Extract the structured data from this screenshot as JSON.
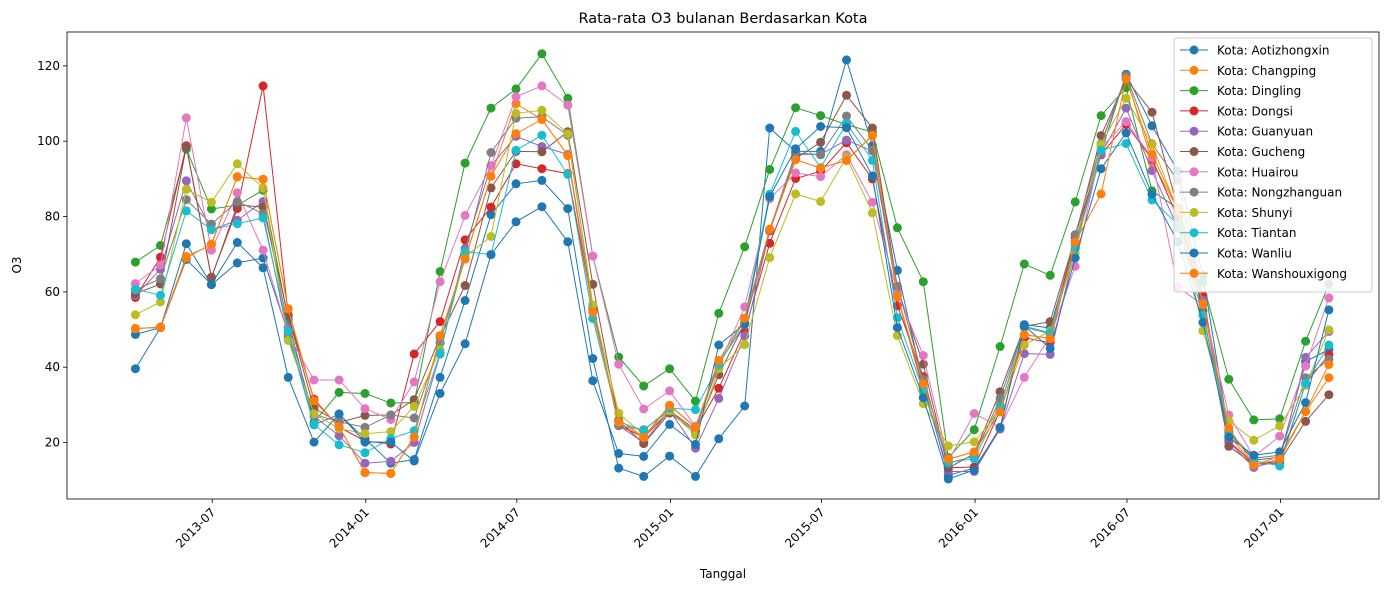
{
  "chart_data": {
    "type": "line",
    "title": "Rata-rata O3 bulanan Berdasarkan Kota",
    "xlabel": "Tanggal",
    "ylabel": "O3",
    "ylim": [
      5,
      129
    ],
    "yticks": [
      20,
      40,
      60,
      80,
      100,
      120
    ],
    "xlim": [
      "2013-01-08",
      "2017-04-29"
    ],
    "xticks": [
      {
        "date": "2013-07-01",
        "label": "2013-07"
      },
      {
        "date": "2014-01-01",
        "label": "2014-01"
      },
      {
        "date": "2014-07-01",
        "label": "2014-07"
      },
      {
        "date": "2015-01-01",
        "label": "2015-01"
      },
      {
        "date": "2015-07-01",
        "label": "2015-07"
      },
      {
        "date": "2016-01-01",
        "label": "2016-01"
      },
      {
        "date": "2016-07-01",
        "label": "2016-07"
      },
      {
        "date": "2017-01-01",
        "label": "2017-01"
      }
    ],
    "grid": false,
    "legend_position": "top-right",
    "x": [
      "2013-03-31",
      "2013-04-30",
      "2013-05-31",
      "2013-06-30",
      "2013-07-31",
      "2013-08-31",
      "2013-09-30",
      "2013-10-31",
      "2013-11-30",
      "2013-12-31",
      "2014-01-31",
      "2014-02-28",
      "2014-03-31",
      "2014-04-30",
      "2014-05-31",
      "2014-06-30",
      "2014-07-31",
      "2014-08-31",
      "2014-09-30",
      "2014-10-31",
      "2014-11-30",
      "2014-12-31",
      "2015-01-31",
      "2015-02-28",
      "2015-03-31",
      "2015-04-30",
      "2015-05-31",
      "2015-06-30",
      "2015-07-31",
      "2015-08-31",
      "2015-09-30",
      "2015-10-31",
      "2015-11-30",
      "2015-12-31",
      "2016-01-31",
      "2016-02-29",
      "2016-03-31",
      "2016-04-30",
      "2016-05-31",
      "2016-06-30",
      "2016-07-31",
      "2016-08-31",
      "2016-09-30",
      "2016-10-31",
      "2016-11-30",
      "2016-12-31",
      "2017-01-31",
      "2017-02-28"
    ],
    "series": [
      {
        "name": "Kota: Aotizhongxin",
        "color": "#1f77b4",
        "values": [
          48.7,
          50.5,
          72.8,
          61.9,
          67.7,
          69.0,
          49.0,
          24.7,
          27.5,
          21.0,
          14.5,
          15.5,
          37.3,
          57.7,
          80.5,
          88.7,
          89.6,
          82.1,
          42.3,
          13.2,
          11.0,
          16.4,
          11.0,
          21.0,
          29.7,
          103.5,
          97.3,
          97.3,
          121.6,
          98.8,
          65.7,
          35.4,
          11.3,
          13.2,
          23.6,
          51.3,
          50.4,
          73.2,
          97.0,
          117.8,
          104.1,
          92.1,
          64.4,
          22.6,
          15.3,
          16.1,
          41.5,
          44.7
        ]
      },
      {
        "name": "Kota: Changping",
        "color": "#ff7f0e",
        "values": [
          50.2,
          50.7,
          69.4,
          72.5,
          90.5,
          89.9,
          55.5,
          31.1,
          24.2,
          12.0,
          11.8,
          21.6,
          48.4,
          68.7,
          90.7,
          110.0,
          105.8,
          96.2,
          54.6,
          26.1,
          21.5,
          29.9,
          24.1,
          41.8,
          53.0,
          76.6,
          95.1,
          92.9,
          94.9,
          101.5,
          58.8,
          33.6,
          15.6,
          17.5,
          30.1,
          48.7,
          47.6,
          72.5,
          99.1,
          117.3,
          94.5,
          81.9,
          59.1,
          21.9,
          14.0,
          16.4,
          28.2,
          37.2
        ]
      },
      {
        "name": "Kota: Dingling",
        "color": "#2ca02c",
        "values": [
          67.9,
          72.3,
          97.9,
          82.0,
          83.0,
          87.0,
          52.6,
          25.4,
          33.3,
          33.0,
          30.5,
          30.6,
          65.4,
          94.2,
          108.8,
          113.9,
          123.2,
          111.4,
          69.5,
          42.7,
          35.0,
          39.6,
          31.0,
          54.3,
          72.0,
          92.5,
          108.9,
          106.8,
          104.4,
          102.4,
          77.0,
          62.7,
          16.0,
          23.4,
          45.5,
          67.4,
          64.4,
          83.9,
          106.8,
          114.2,
          86.8,
          82.2,
          62.6,
          36.8,
          26.0,
          26.3,
          46.9,
          62.0
        ]
      },
      {
        "name": "Kota: Dongsi",
        "color": "#d62728",
        "values": [
          58.5,
          69.2,
          98.8,
          63.9,
          82.1,
          114.7,
          53.9,
          31.5,
          24.1,
          20.4,
          19.6,
          43.5,
          52.1,
          73.8,
          82.5,
          94.0,
          92.7,
          91.4,
          55.6,
          24.5,
          21.4,
          28.2,
          23.4,
          34.4,
          49.5,
          72.9,
          90.1,
          92.0,
          99.6,
          90.0,
          56.3,
          37.5,
          13.3,
          13.5,
          28.4,
          47.8,
          46.5,
          75.0,
          96.4,
          104.5,
          95.3,
          79.6,
          58.9,
          20.4,
          14.3,
          14.4,
          35.7,
          43.3
        ]
      },
      {
        "name": "Kota: Guanyuan",
        "color": "#9467bd",
        "values": [
          59.0,
          66.0,
          89.5,
          76.5,
          79.0,
          84.0,
          50.6,
          27.0,
          21.8,
          14.5,
          15.0,
          20.0,
          43.5,
          71.5,
          93.5,
          101.3,
          98.6,
          96.5,
          56.0,
          24.5,
          20.0,
          28.5,
          18.5,
          31.7,
          48.3,
          76.2,
          96.5,
          96.5,
          100.3,
          97.4,
          59.2,
          34.4,
          12.3,
          12.3,
          23.6,
          43.6,
          43.4,
          71.4,
          96.6,
          108.8,
          92.2,
          76.9,
          57.8,
          20.1,
          13.4,
          15.2,
          42.6,
          49.5
        ]
      },
      {
        "name": "Kota: Gucheng",
        "color": "#8c564b",
        "values": [
          59.5,
          62.1,
          98.6,
          63.7,
          83.1,
          82.5,
          53.6,
          29.1,
          25.3,
          27.2,
          27.3,
          31.4,
          48.0,
          61.7,
          87.6,
          97.3,
          97.2,
          102.5,
          62.0,
          25.7,
          19.7,
          27.8,
          22.9,
          38.0,
          51.7,
          76.2,
          95.4,
          99.7,
          112.2,
          103.5,
          61.0,
          40.8,
          13.2,
          17.0,
          33.5,
          50.8,
          52.1,
          74.5,
          101.5,
          116.5,
          107.7,
          82.0,
          55.0,
          19.0,
          14.2,
          15.0,
          25.6,
          32.7
        ]
      },
      {
        "name": "Kota: Huairou",
        "color": "#e377c2",
        "values": [
          62.2,
          67.1,
          106.2,
          71.1,
          86.3,
          71.1,
          48.6,
          36.6,
          36.6,
          29.0,
          26.1,
          36.1,
          62.7,
          80.3,
          93.4,
          111.8,
          114.7,
          109.6,
          69.5,
          40.8,
          28.9,
          33.7,
          24.3,
          40.4,
          56.0,
          84.7,
          91.6,
          90.6,
          96.4,
          83.8,
          59.9,
          43.1,
          15.0,
          27.7,
          24.0,
          37.3,
          48.2,
          66.8,
          98.3,
          105.2,
          95.6,
          61.2,
          56.6,
          27.3,
          16.2,
          21.7,
          40.3,
          58.4
        ]
      },
      {
        "name": "Kota: Nongzhanguan",
        "color": "#7f7f7f",
        "values": [
          60.5,
          63.5,
          84.5,
          78.0,
          84.0,
          80.8,
          48.0,
          27.5,
          25.5,
          24.0,
          27.3,
          26.5,
          46.5,
          70.0,
          97.0,
          106.1,
          106.5,
          101.6,
          56.4,
          24.5,
          23.4,
          28.5,
          23.4,
          41.0,
          51.4,
          76.5,
          96.9,
          96.4,
          106.7,
          97.6,
          61.5,
          36.8,
          14.5,
          16.4,
          31.7,
          50.6,
          48.9,
          75.2,
          99.4,
          117.4,
          99.3,
          89.6,
          56.8,
          22.9,
          15.8,
          16.6,
          37.2,
          42.1
        ]
      },
      {
        "name": "Kota: Shunyi",
        "color": "#bcbd22",
        "values": [
          53.9,
          57.3,
          87.2,
          83.8,
          94.0,
          87.6,
          47.1,
          27.6,
          23.7,
          22.3,
          22.9,
          29.6,
          44.6,
          69.3,
          74.7,
          107.4,
          108.2,
          102.0,
          56.5,
          27.8,
          22.0,
          28.4,
          22.0,
          39.6,
          46.0,
          69.1,
          86.0,
          84.0,
          95.7,
          81.0,
          48.4,
          30.3,
          19.1,
          20.2,
          28.5,
          45.9,
          49.6,
          70.3,
          99.1,
          111.4,
          99.1,
          81.5,
          49.7,
          25.7,
          20.6,
          24.4,
          35.2,
          49.9
        ]
      },
      {
        "name": "Kota: Tiantan",
        "color": "#17becf",
        "values": [
          60.7,
          59.1,
          81.5,
          76.5,
          78.1,
          79.6,
          49.6,
          24.8,
          19.4,
          17.3,
          21.0,
          23.1,
          43.7,
          70.7,
          69.9,
          97.6,
          101.6,
          91.2,
          52.9,
          25.5,
          23.2,
          29.1,
          28.7,
          40.6,
          52.7,
          85.9,
          102.6,
          93.0,
          104.7,
          94.9,
          53.1,
          33.8,
          14.7,
          15.7,
          29.4,
          50.9,
          49.1,
          71.7,
          97.6,
          99.4,
          84.4,
          77.9,
          53.8,
          23.2,
          15.2,
          13.8,
          35.7,
          45.9
        ]
      },
      {
        "name": "Kota: Wanliu",
        "color": "#1f77b4",
        "values": [
          39.6,
          50.5,
          68.6,
          62.0,
          73.1,
          66.4,
          37.3,
          20.1,
          27.6,
          20.1,
          20.1,
          15.1,
          33.0,
          46.2,
          69.9,
          78.6,
          82.6,
          73.3,
          36.4,
          17.1,
          16.3,
          24.8,
          19.5,
          45.9,
          51.5,
          85.3,
          98.0,
          103.9,
          103.6,
          90.8,
          50.5,
          31.9,
          10.3,
          12.7,
          24.0,
          51.0,
          45.0,
          69.0,
          92.7,
          102.2,
          85.9,
          73.3,
          51.9,
          21.4,
          16.6,
          17.5,
          30.6,
          55.2
        ]
      },
      {
        "name": "Kota: Wanshouxigong",
        "color": "#ff7f0e",
        "values": [
          50.3,
          50.5,
          69.0,
          72.7,
          90.6,
          89.9,
          55.5,
          31.1,
          24.2,
          12.0,
          11.8,
          21.4,
          48.4,
          68.7,
          90.7,
          102.0,
          105.8,
          96.2,
          54.6,
          25.4,
          21.3,
          29.8,
          24.0,
          41.7,
          53.0,
          76.6,
          95.1,
          92.9,
          94.9,
          101.6,
          58.8,
          35.6,
          15.6,
          17.5,
          28.1,
          48.6,
          47.6,
          73.2,
          86.0,
          116.6,
          96.6,
          81.9,
          56.9,
          23.9,
          14.0,
          15.6,
          28.2,
          40.7
        ]
      }
    ]
  }
}
